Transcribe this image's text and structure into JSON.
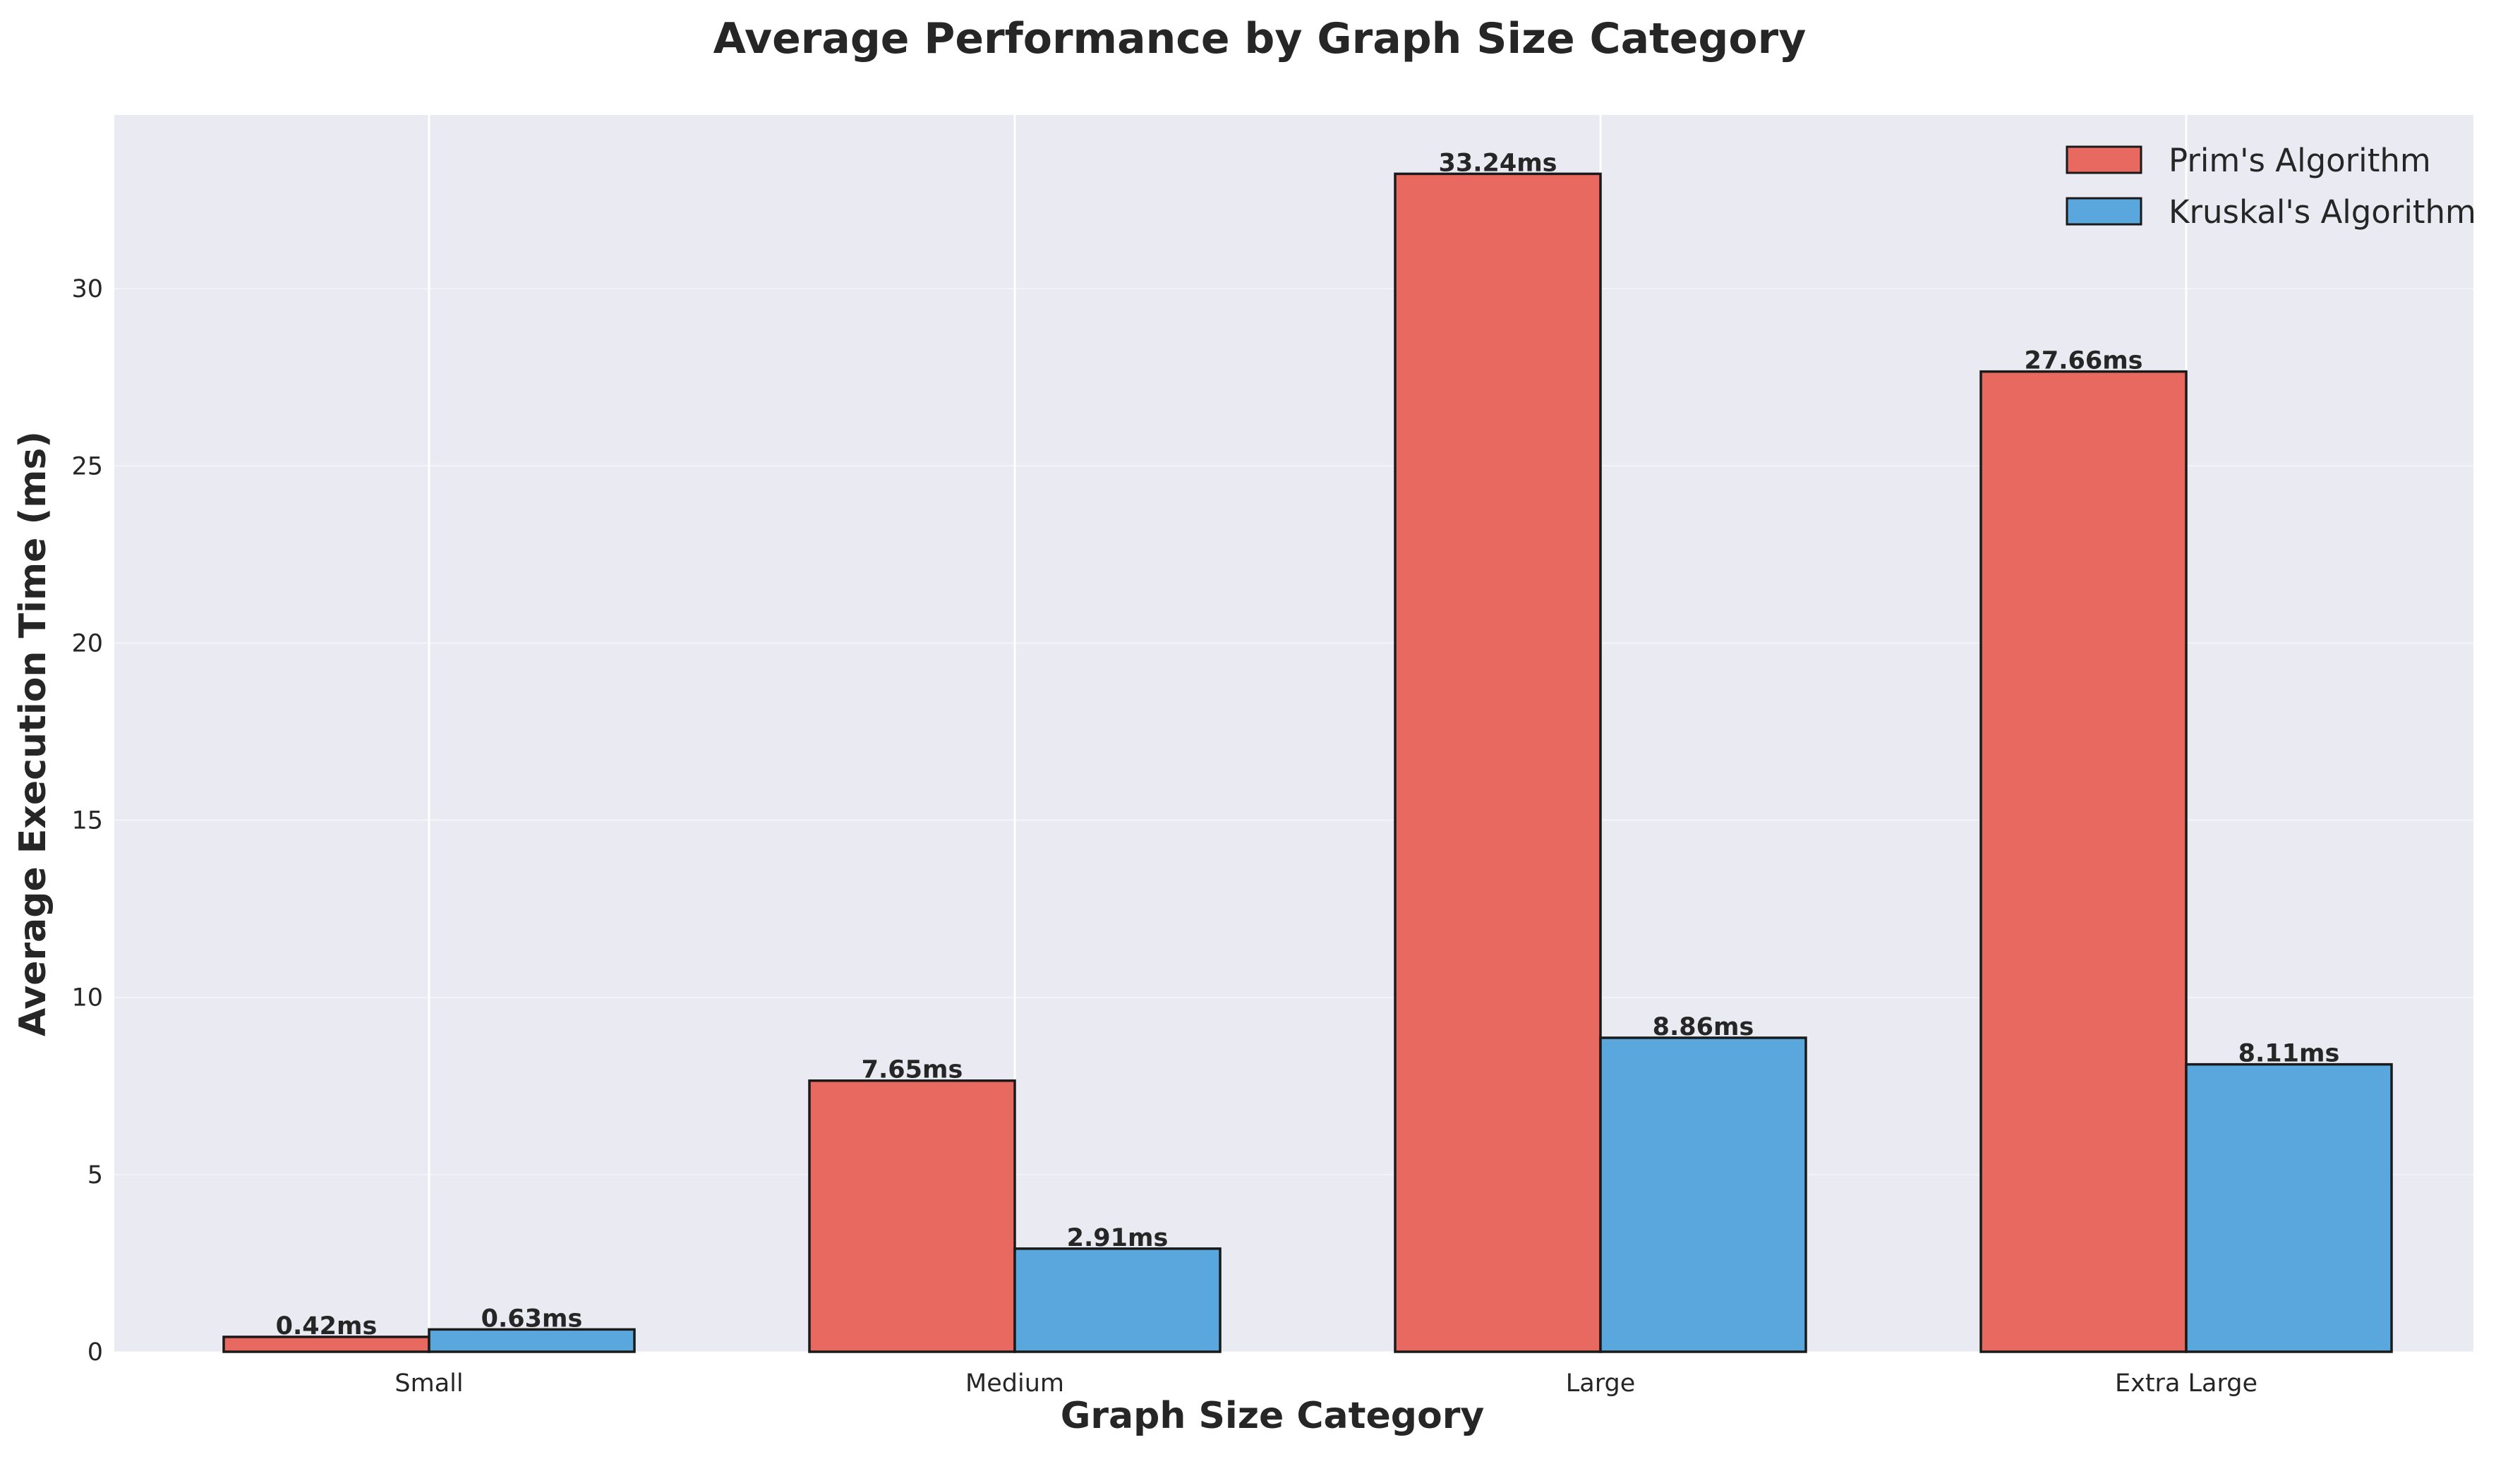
{
  "chart_data": {
    "type": "bar",
    "title": "Average Performance by Graph Size Category",
    "xlabel": "Graph Size Category",
    "ylabel": "Average Execution Time (ms)",
    "categories": [
      "Small",
      "Medium",
      "Large",
      "Extra Large"
    ],
    "series": [
      {
        "name": "Prim's Algorithm",
        "color": "#e8695f",
        "values": [
          0.42,
          7.65,
          33.24,
          27.66
        ],
        "labels": [
          "0.42ms",
          "7.65ms",
          "33.24ms",
          "27.66ms"
        ]
      },
      {
        "name": "Kruskal's Algorithm",
        "color": "#5aa7dd",
        "values": [
          0.63,
          2.91,
          8.86,
          8.11
        ],
        "labels": [
          "0.63ms",
          "2.91ms",
          "8.86ms",
          "8.11ms"
        ]
      }
    ],
    "yticks": [
      0,
      5,
      10,
      15,
      20,
      25,
      30
    ],
    "ylim": [
      0,
      34.9
    ],
    "grid": true,
    "legend": "top-right",
    "background": "#eaeaf2",
    "edge_color": "#1a1a1a"
  }
}
